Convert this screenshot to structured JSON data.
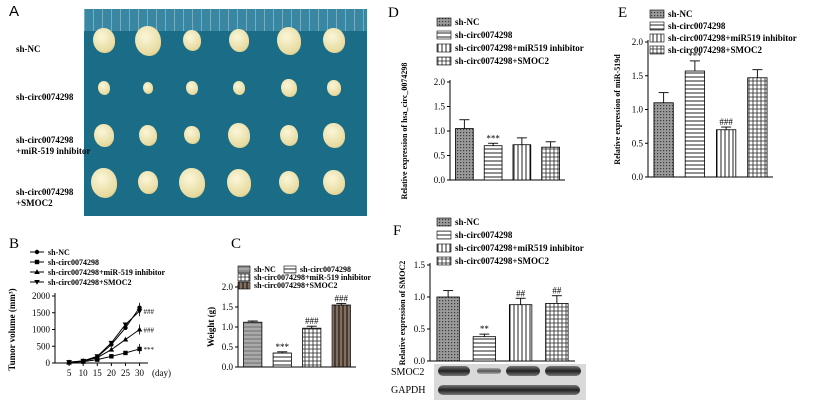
{
  "panel_a": {
    "letter": "A",
    "rows": [
      "sh-NC",
      "sh-circ0074298",
      "sh-circ0074298\n+miR-519 inhibitor",
      "sh-circ0074298\n+SMOC2"
    ]
  },
  "chart_data": [
    {
      "panel": "B",
      "type": "line",
      "title": "",
      "xlabel": "(day)",
      "ylabel": "Tumor volume (mm³)",
      "x": [
        5,
        10,
        15,
        20,
        25,
        30
      ],
      "ylim": [
        0,
        2000
      ],
      "yticks": [
        "0",
        "500",
        "1000",
        "1500",
        "2000"
      ],
      "series": [
        {
          "name": "sh-NC",
          "values": [
            20,
            60,
            180,
            550,
            1050,
            1650
          ],
          "marker": "circle",
          "annotation": ""
        },
        {
          "name": "sh-circ0074298",
          "values": [
            15,
            40,
            100,
            200,
            300,
            420
          ],
          "marker": "square",
          "annotation": "***"
        },
        {
          "name": "sh-circ0074298+miR-519 inhibitor",
          "values": [
            20,
            55,
            160,
            400,
            700,
            1000
          ],
          "marker": "triangle",
          "annotation": "###"
        },
        {
          "name": "sh-circ0074298+SMOC2",
          "values": [
            25,
            65,
            200,
            600,
            1150,
            1550
          ],
          "marker": "triangle-down",
          "annotation": "###"
        }
      ],
      "legend_position": "top-left"
    },
    {
      "panel": "C",
      "type": "bar",
      "ylabel": "Weight (g)",
      "categories": [
        "sh-NC",
        "sh-circ0074298",
        "sh-circ0074298+miR-519 inhibitor",
        "sh-circ0074298+SMOC2"
      ],
      "values": [
        1.12,
        0.35,
        0.97,
        1.55
      ],
      "errors": [
        0.03,
        0.03,
        0.05,
        0.04
      ],
      "annotations": [
        "",
        "***",
        "###",
        "###"
      ],
      "ylim": [
        0,
        2.0
      ],
      "yticks": [
        "0.0",
        "0.5",
        "1.0",
        "1.5",
        "2.0"
      ],
      "legend_position": "top"
    },
    {
      "panel": "D",
      "type": "bar",
      "ylabel": "Relative expression of hsa_circ_0074298",
      "categories": [
        "sh-NC",
        "sh-circ0074298",
        "sh-circ0074298+miR519 inhibitor",
        "sh-circ0074298+SMOC2"
      ],
      "values": [
        1.05,
        0.7,
        0.72,
        0.67
      ],
      "errors": [
        0.18,
        0.05,
        0.14,
        0.11
      ],
      "annotations": [
        "",
        "***",
        "",
        ""
      ],
      "ylim": [
        0,
        2.0
      ],
      "yticks": [
        "0.0",
        "0.5",
        "1.0",
        "1.5",
        "2.0"
      ],
      "legend_position": "top"
    },
    {
      "panel": "E",
      "type": "bar",
      "ylabel": "Relative expression of miR-519d",
      "categories": [
        "sh-NC",
        "sh-circ0074298",
        "sh-circ0074298+miR519 inhibitor",
        "sh-circ0074298+SMOC2"
      ],
      "values": [
        1.1,
        1.57,
        0.7,
        1.47
      ],
      "errors": [
        0.15,
        0.15,
        0.04,
        0.12
      ],
      "annotations": [
        "",
        "***",
        "###",
        ""
      ],
      "ylim": [
        0,
        2.0
      ],
      "yticks": [
        "0.0",
        "0.5",
        "1.0",
        "1.5",
        "2.0"
      ],
      "legend_position": "top"
    },
    {
      "panel": "F",
      "type": "bar",
      "ylabel": "Relative expression of SMOC2",
      "categories": [
        "sh-NC",
        "sh-circ0074298",
        "sh-circ0074298+miR519 inhibitor",
        "sh-circ0074298+SMOC2"
      ],
      "values": [
        1.0,
        0.38,
        0.88,
        0.9
      ],
      "errors": [
        0.1,
        0.04,
        0.1,
        0.12
      ],
      "annotations": [
        "",
        "**",
        "##",
        "##"
      ],
      "ylim": [
        0,
        1.5
      ],
      "yticks": [
        "0.0",
        "0.5",
        "1.0",
        "1.5"
      ],
      "legend_position": "top",
      "blots": [
        "SMOC2",
        "GAPDH"
      ]
    }
  ]
}
